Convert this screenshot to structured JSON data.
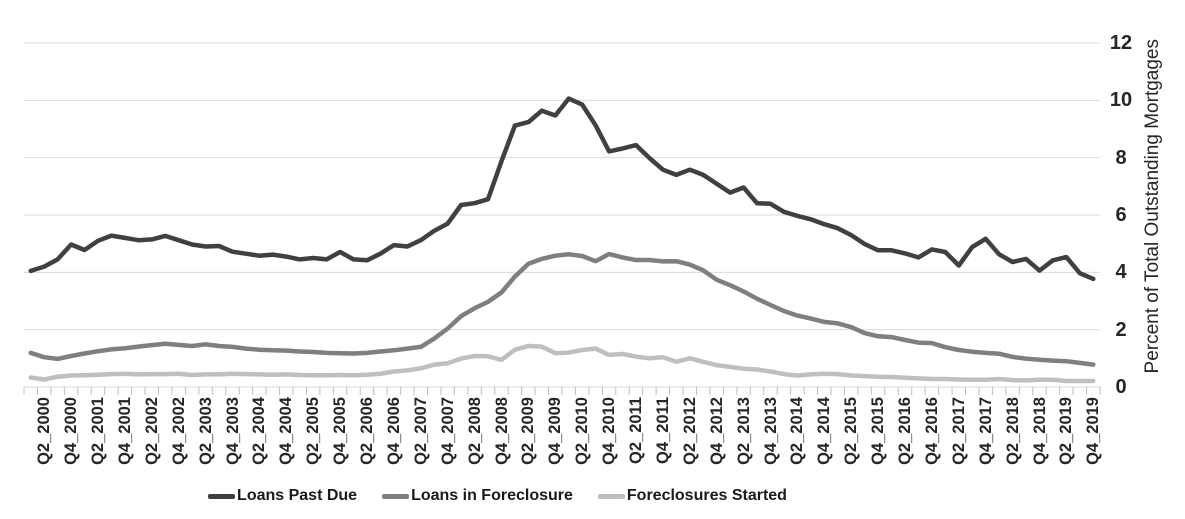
{
  "chart_data": {
    "type": "line",
    "title": "",
    "xlabel": "",
    "ylabel": "Percent of Total Outstanding Mortgages",
    "legend_position": "bottom",
    "grid": "horizontal",
    "y_axis": {
      "min": 0,
      "max": 12,
      "tick_step": 2,
      "ticks": [
        0,
        2,
        4,
        6,
        8,
        10,
        12
      ]
    },
    "x_tick_labels": [
      "Q2_2000",
      "Q4_2000",
      "Q2_2001",
      "Q4_2001",
      "Q2_2002",
      "Q4_2002",
      "Q2_2003",
      "Q4_2003",
      "Q2_2004",
      "Q4_2004",
      "Q2_2005",
      "Q4_2005",
      "Q2_2006",
      "Q4_2006",
      "Q2_2007",
      "Q4_2007",
      "Q2_2008",
      "Q4_2008",
      "Q2_2009",
      "Q4_2009",
      "Q2_2010",
      "Q4_2010",
      "Q2_2011",
      "Q4_2011",
      "Q2_2012",
      "Q4_2012",
      "Q2_2013",
      "Q4_2013",
      "Q2_2014",
      "Q4_2014",
      "Q2_2015",
      "Q4_2015",
      "Q2_2016",
      "Q4_2016",
      "Q2_2017",
      "Q4_2017",
      "Q2_2018",
      "Q4_2018",
      "Q2_2019",
      "Q4_2019"
    ],
    "categories": [
      "Q1_2000",
      "Q2_2000",
      "Q3_2000",
      "Q4_2000",
      "Q1_2001",
      "Q2_2001",
      "Q3_2001",
      "Q4_2001",
      "Q1_2002",
      "Q2_2002",
      "Q3_2002",
      "Q4_2002",
      "Q1_2003",
      "Q2_2003",
      "Q3_2003",
      "Q4_2003",
      "Q1_2004",
      "Q2_2004",
      "Q3_2004",
      "Q4_2004",
      "Q1_2005",
      "Q2_2005",
      "Q3_2005",
      "Q4_2005",
      "Q1_2006",
      "Q2_2006",
      "Q3_2006",
      "Q4_2006",
      "Q1_2007",
      "Q2_2007",
      "Q3_2007",
      "Q4_2007",
      "Q1_2008",
      "Q2_2008",
      "Q3_2008",
      "Q4_2008",
      "Q1_2009",
      "Q2_2009",
      "Q3_2009",
      "Q4_2009",
      "Q1_2010",
      "Q2_2010",
      "Q3_2010",
      "Q4_2010",
      "Q1_2011",
      "Q2_2011",
      "Q3_2011",
      "Q4_2011",
      "Q1_2012",
      "Q2_2012",
      "Q3_2012",
      "Q4_2012",
      "Q1_2013",
      "Q2_2013",
      "Q3_2013",
      "Q4_2013",
      "Q1_2014",
      "Q2_2014",
      "Q3_2014",
      "Q4_2014",
      "Q1_2015",
      "Q2_2015",
      "Q3_2015",
      "Q4_2015",
      "Q1_2016",
      "Q2_2016",
      "Q3_2016",
      "Q4_2016",
      "Q1_2017",
      "Q2_2017",
      "Q3_2017",
      "Q4_2017",
      "Q1_2018",
      "Q2_2018",
      "Q3_2018",
      "Q4_2018",
      "Q1_2019",
      "Q2_2019",
      "Q3_2019",
      "Q4_2019"
    ],
    "series": [
      {
        "name": "Loans Past Due",
        "color": "#404040",
        "values": [
          4.05,
          4.2,
          4.45,
          4.97,
          4.78,
          5.1,
          5.28,
          5.2,
          5.12,
          5.15,
          5.27,
          5.12,
          4.97,
          4.9,
          4.92,
          4.72,
          4.65,
          4.58,
          4.62,
          4.55,
          4.45,
          4.5,
          4.45,
          4.71,
          4.45,
          4.42,
          4.65,
          4.95,
          4.9,
          5.12,
          5.45,
          5.7,
          6.35,
          6.41,
          6.55,
          7.88,
          9.12,
          9.24,
          9.64,
          9.47,
          10.06,
          9.85,
          9.13,
          8.22,
          8.32,
          8.44,
          7.99,
          7.58,
          7.4,
          7.58,
          7.4,
          7.09,
          6.78,
          6.96,
          6.41,
          6.39,
          6.11,
          5.97,
          5.85,
          5.68,
          5.54,
          5.3,
          4.99,
          4.77,
          4.77,
          4.66,
          4.52,
          4.8,
          4.71,
          4.24,
          4.88,
          5.17,
          4.63,
          4.36,
          4.47,
          4.06,
          4.42,
          4.53,
          3.97,
          3.77
        ]
      },
      {
        "name": "Loans in Foreclosure",
        "color": "#7f7f7f",
        "values": [
          1.19,
          1.04,
          0.98,
          1.08,
          1.17,
          1.25,
          1.31,
          1.35,
          1.41,
          1.46,
          1.51,
          1.47,
          1.43,
          1.49,
          1.43,
          1.4,
          1.34,
          1.3,
          1.28,
          1.27,
          1.24,
          1.22,
          1.19,
          1.18,
          1.17,
          1.19,
          1.24,
          1.28,
          1.34,
          1.4,
          1.69,
          2.04,
          2.47,
          2.75,
          2.97,
          3.3,
          3.85,
          4.3,
          4.47,
          4.58,
          4.63,
          4.57,
          4.39,
          4.64,
          4.52,
          4.43,
          4.43,
          4.38,
          4.39,
          4.27,
          4.07,
          3.74,
          3.55,
          3.33,
          3.08,
          2.86,
          2.65,
          2.49,
          2.39,
          2.27,
          2.22,
          2.09,
          1.88,
          1.77,
          1.74,
          1.64,
          1.55,
          1.53,
          1.39,
          1.29,
          1.23,
          1.19,
          1.16,
          1.05,
          0.99,
          0.95,
          0.92,
          0.9,
          0.84,
          0.78
        ]
      },
      {
        "name": "Foreclosures Started",
        "color": "#bfbfbf",
        "values": [
          0.33,
          0.26,
          0.36,
          0.4,
          0.41,
          0.43,
          0.45,
          0.46,
          0.44,
          0.45,
          0.45,
          0.46,
          0.42,
          0.44,
          0.44,
          0.46,
          0.45,
          0.44,
          0.43,
          0.44,
          0.42,
          0.41,
          0.41,
          0.42,
          0.41,
          0.43,
          0.46,
          0.54,
          0.58,
          0.65,
          0.78,
          0.83,
          0.99,
          1.08,
          1.07,
          0.95,
          1.3,
          1.43,
          1.41,
          1.18,
          1.2,
          1.29,
          1.34,
          1.12,
          1.15,
          1.06,
          1.0,
          1.04,
          0.88,
          1.0,
          0.88,
          0.76,
          0.7,
          0.64,
          0.61,
          0.54,
          0.45,
          0.4,
          0.44,
          0.46,
          0.45,
          0.4,
          0.38,
          0.36,
          0.35,
          0.32,
          0.3,
          0.28,
          0.28,
          0.26,
          0.25,
          0.25,
          0.28,
          0.24,
          0.23,
          0.25,
          0.25,
          0.21,
          0.21,
          0.21
        ]
      }
    ]
  },
  "style": {
    "gridline_color": "#d9d9d9",
    "axis_line_color": "#d9d9d9",
    "tick_color": "#bfbfbf",
    "text_color": "#262626",
    "background": "#ffffff",
    "line_width": 4.5
  }
}
